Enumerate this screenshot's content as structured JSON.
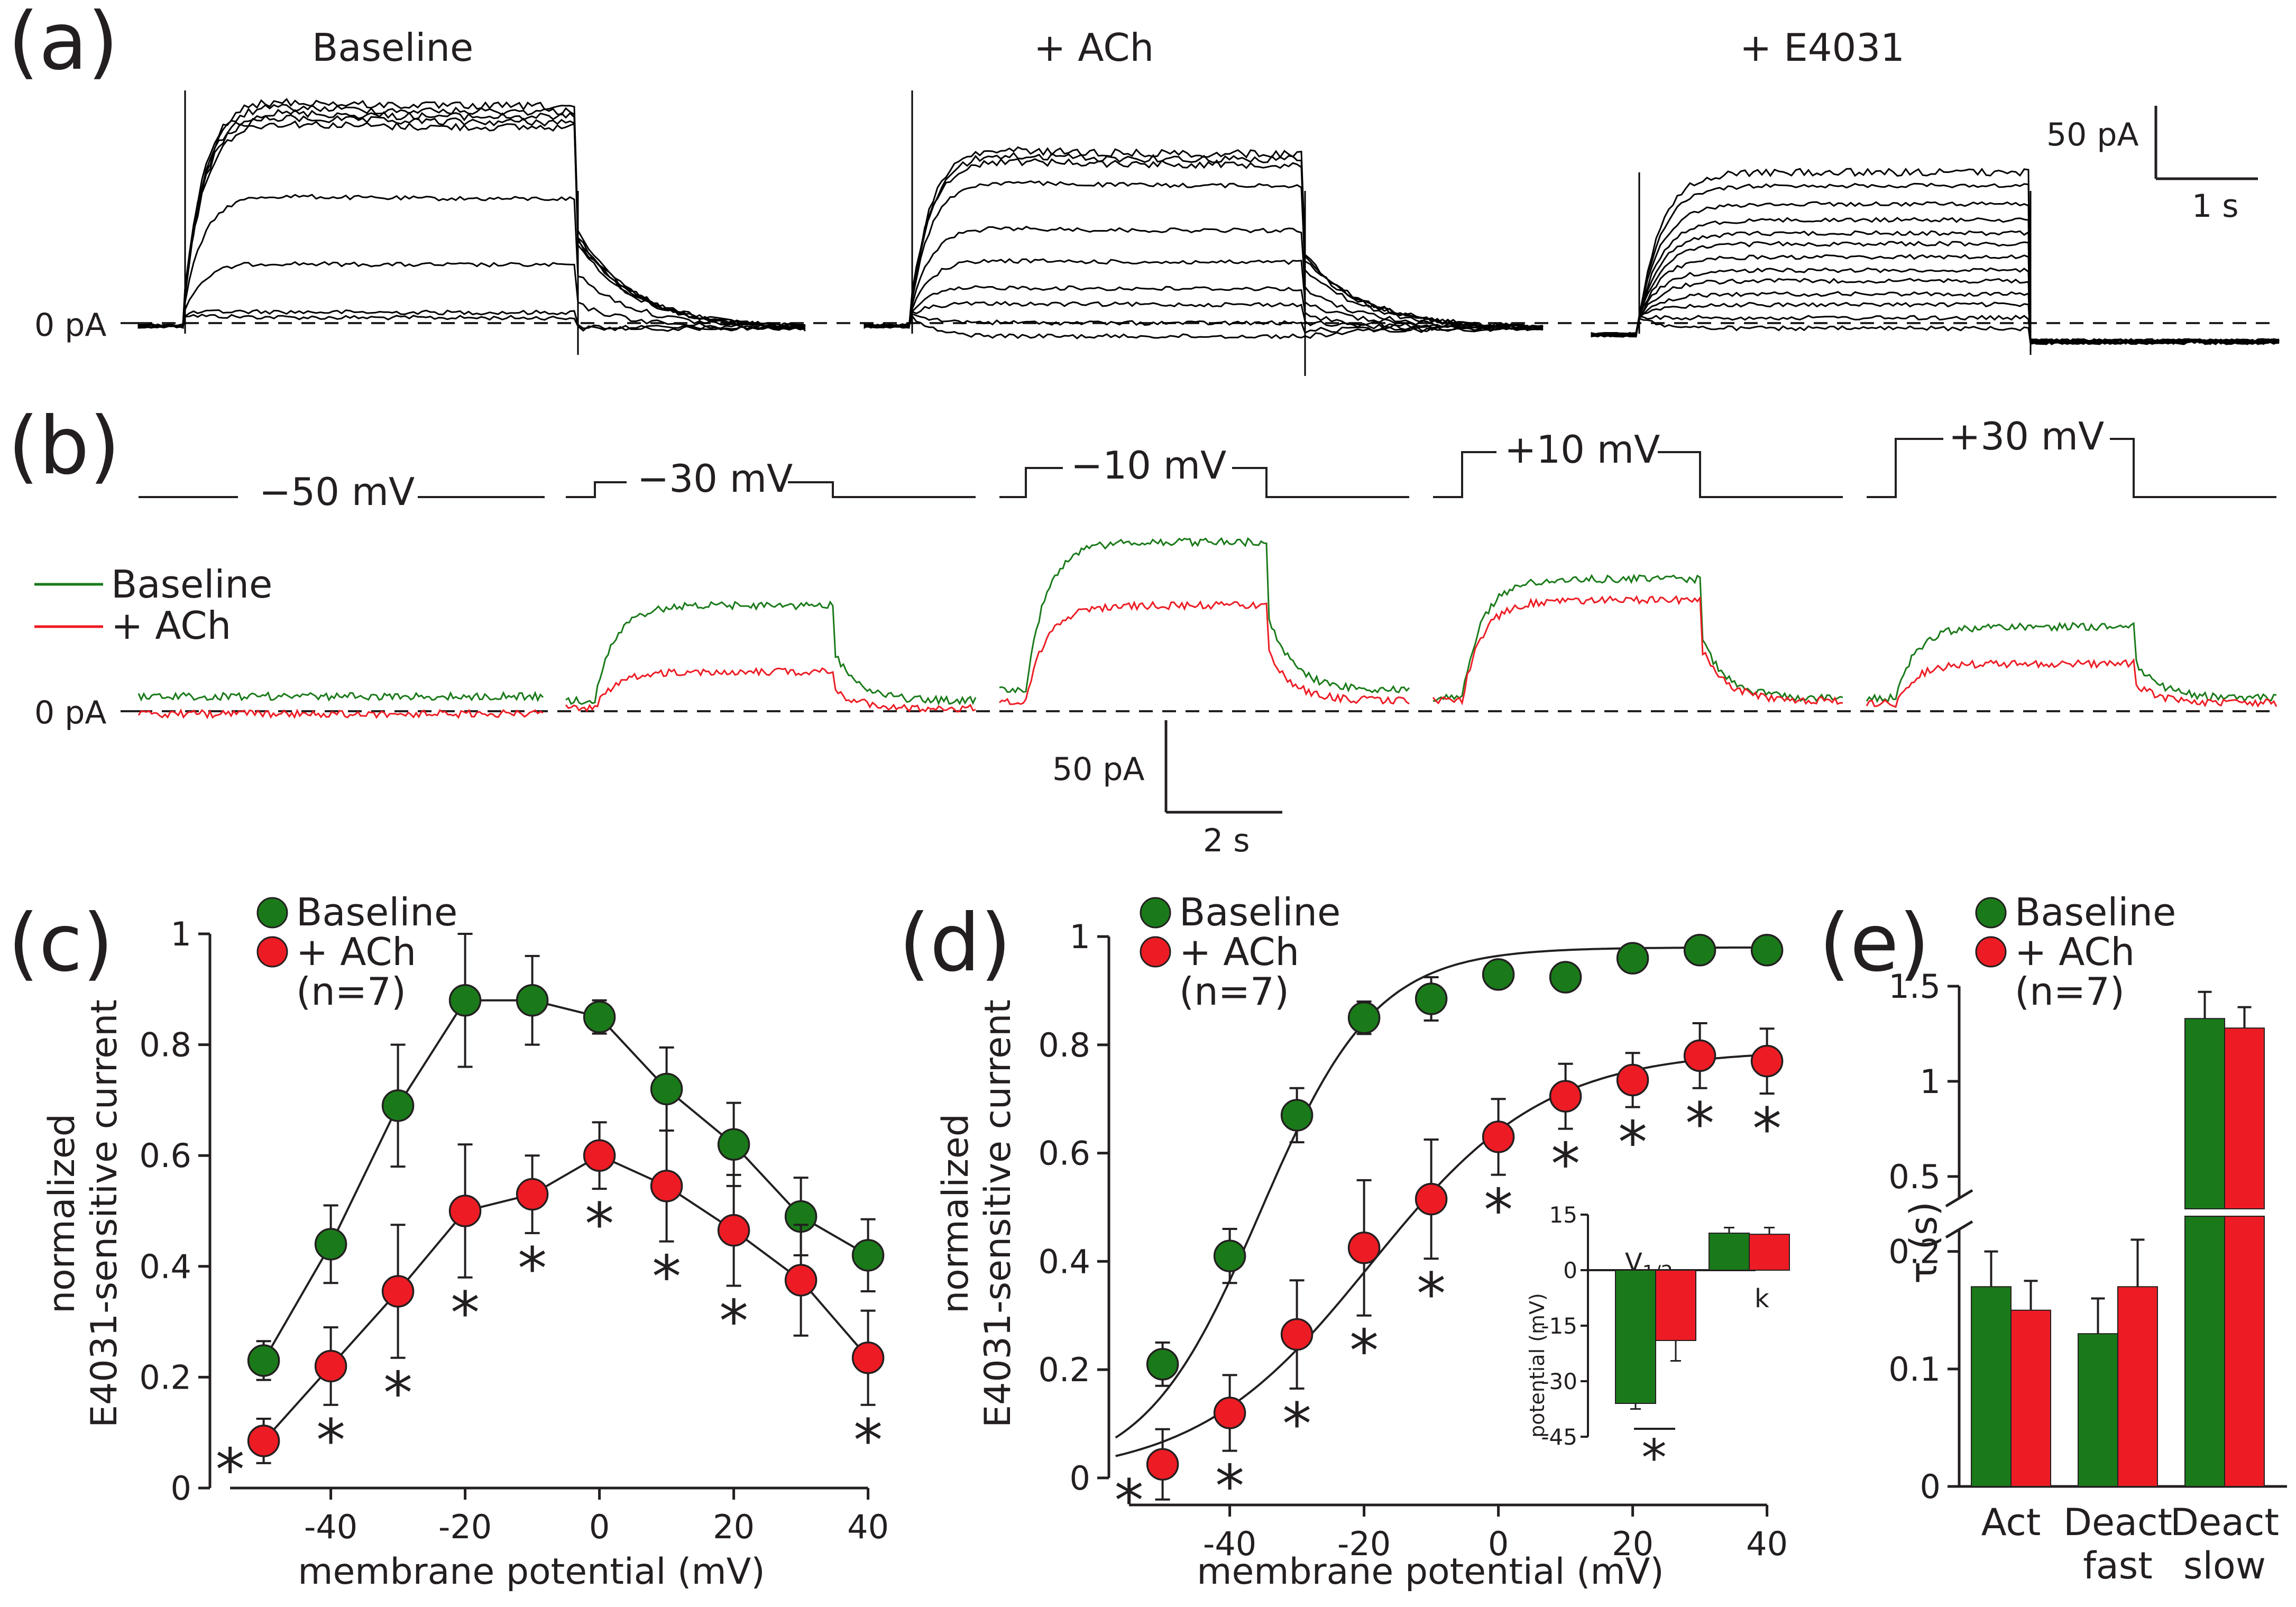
{
  "panel_labels": [
    "(a)",
    "(b)",
    "(c)",
    "(d)",
    "(e)"
  ],
  "colors": {
    "baseline": "#1a7a1a",
    "ach": "#ed1c24",
    "trace": "#000000",
    "axis": "#231f20"
  },
  "legend": {
    "baseline": "Baseline",
    "ach": "+ ACh",
    "n": "(n=7)"
  },
  "panel_a": {
    "conditions": [
      "Baseline",
      "+ ACh",
      "+ E4031"
    ],
    "zero_label": "0 pA",
    "scale_y": "50 pA",
    "scale_x": "1 s"
  },
  "panel_b": {
    "steps": [
      "−50 mV",
      "−30 mV",
      "−10 mV",
      "+10 mV",
      "+30 mV"
    ],
    "zero_label": "0 pA",
    "scale_y": "50 pA",
    "scale_x": "2 s"
  },
  "chart_data": [
    {
      "panel": "c",
      "type": "line",
      "xlabel": "membrane potential (mV)",
      "ylabel": [
        "normalized",
        "E4031-sensitive current"
      ],
      "xlim": [
        -58,
        42
      ],
      "ylim": [
        0,
        1
      ],
      "xticks": [
        -40,
        -20,
        0,
        20,
        40
      ],
      "yticks": [
        0,
        0.2,
        0.4,
        0.6,
        0.8,
        1
      ],
      "x": [
        -50,
        -40,
        -30,
        -20,
        -10,
        0,
        10,
        20,
        30,
        40
      ],
      "series": [
        {
          "name": "Baseline",
          "values": [
            0.23,
            0.44,
            0.69,
            0.88,
            0.88,
            0.85,
            0.72,
            0.62,
            0.49,
            0.42
          ],
          "errors": [
            0.035,
            0.07,
            0.11,
            0.12,
            0.08,
            0.03,
            0.075,
            0.075,
            0.07,
            0.065
          ]
        },
        {
          "name": "+ ACh",
          "values": [
            0.085,
            0.22,
            0.355,
            0.5,
            0.53,
            0.6,
            0.545,
            0.465,
            0.375,
            0.235
          ],
          "errors": [
            0.04,
            0.07,
            0.12,
            0.12,
            0.07,
            0.06,
            0.1,
            0.1,
            0.1,
            0.085
          ]
        }
      ],
      "significance": [
        "*",
        "*",
        "*",
        "*",
        "*",
        "*",
        "*",
        "*",
        "*"
      ],
      "significance_x": [
        -55,
        -40,
        -30,
        -20,
        -10,
        0,
        10,
        20,
        40
      ]
    },
    {
      "panel": "d",
      "type": "scatter",
      "xlabel": "membrane potential (mV)",
      "ylabel": [
        "normalized",
        "E4031-sensitive current"
      ],
      "xlim": [
        -58,
        42
      ],
      "ylim": [
        -0.05,
        1.05
      ],
      "xticks": [
        -40,
        -20,
        0,
        20,
        40
      ],
      "yticks": [
        0,
        0.2,
        0.4,
        0.6,
        0.8,
        1
      ],
      "x": [
        -50,
        -40,
        -30,
        -20,
        -10,
        0,
        10,
        20,
        30,
        40
      ],
      "series": [
        {
          "name": "Baseline",
          "values": [
            0.21,
            0.41,
            0.67,
            0.85,
            0.885,
            0.93,
            0.925,
            0.96,
            0.975,
            0.975
          ],
          "errors": [
            0.04,
            0.05,
            0.05,
            0.03,
            0.04,
            0.02,
            0.02,
            0.02,
            0.02,
            0.02
          ],
          "fit": {
            "amplitude": 0.98,
            "v_half": -35.5,
            "k": 8.6
          }
        },
        {
          "name": "+ ACh",
          "values": [
            0.025,
            0.12,
            0.265,
            0.425,
            0.515,
            0.63,
            0.705,
            0.735,
            0.78,
            0.77
          ],
          "errors": [
            0.065,
            0.07,
            0.1,
            0.125,
            0.11,
            0.07,
            0.06,
            0.05,
            0.06,
            0.06
          ],
          "fit": {
            "amplitude": 0.79,
            "v_half": -19,
            "k": 13
          }
        }
      ],
      "significance": [
        "*",
        "*",
        "*",
        "*",
        "*",
        "*",
        "*",
        "*",
        "*",
        "*"
      ],
      "significance_x": [
        -55,
        -40,
        -30,
        -20,
        -10,
        0,
        10,
        20,
        30,
        40
      ],
      "inset": {
        "type": "bar",
        "ylabel": "potential (mV)",
        "ylim": [
          -45,
          15
        ],
        "yticks": [
          15,
          0,
          -15,
          -30,
          -45
        ],
        "categories": [
          "V1/2",
          "k"
        ],
        "baseline": [
          -36,
          10
        ],
        "ach": [
          -19,
          9.7
        ],
        "errors_baseline": [
          1.5,
          1.5
        ],
        "errors_ach": [
          5.5,
          1.8
        ],
        "significance": "*"
      }
    },
    {
      "panel": "e",
      "type": "bar",
      "ylabel": "τ (s)",
      "categories": [
        [
          "Act"
        ],
        [
          "Deact",
          "fast"
        ],
        [
          "Deact",
          "slow"
        ]
      ],
      "series": [
        {
          "name": "Baseline",
          "values": [
            0.17,
            0.13,
            1.33
          ],
          "errors": [
            0.03,
            0.03,
            0.14
          ]
        },
        {
          "name": "+ ACh",
          "values": [
            0.15,
            0.17,
            1.28
          ],
          "errors": [
            0.025,
            0.04,
            0.11
          ]
        }
      ],
      "axis_break": true,
      "lower_ylim": [
        0,
        0.23
      ],
      "lower_yticks": [
        0,
        0.1,
        0.2
      ],
      "upper_ylim": [
        0.33,
        1.55
      ],
      "upper_yticks": [
        0.5,
        1,
        1.5
      ]
    }
  ]
}
